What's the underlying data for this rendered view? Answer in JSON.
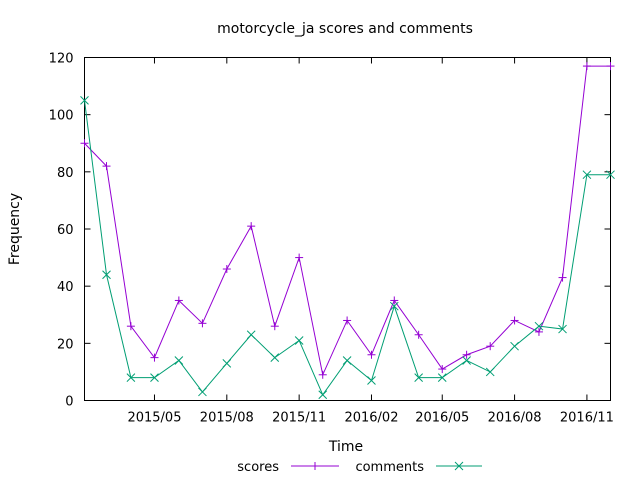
{
  "chart_data": {
    "type": "line",
    "title": "motorcycle_ja scores and comments",
    "xlabel": "Time",
    "ylabel": "Frequency",
    "ylim": [
      0,
      120
    ],
    "yticks": [
      "0",
      "20",
      "40",
      "60",
      "80",
      "100",
      "120"
    ],
    "xlim": [
      "2015-02-01",
      "2016-12-01"
    ],
    "xticks": [
      {
        "label": "2015/05",
        "date": "2015-05-01"
      },
      {
        "label": "2015/08",
        "date": "2015-08-01"
      },
      {
        "label": "2015/11",
        "date": "2015-11-01"
      },
      {
        "label": "2016/02",
        "date": "2016-02-01"
      },
      {
        "label": "2016/05",
        "date": "2016-05-01"
      },
      {
        "label": "2016/08",
        "date": "2016-08-01"
      },
      {
        "label": "2016/11",
        "date": "2016-11-01"
      }
    ],
    "x": [
      "2015-02-01",
      "2015-03-01",
      "2015-04-01",
      "2015-05-01",
      "2015-06-01",
      "2015-07-01",
      "2015-08-01",
      "2015-09-01",
      "2015-10-01",
      "2015-11-01",
      "2015-12-01",
      "2016-01-01",
      "2016-02-01",
      "2016-03-01",
      "2016-04-01",
      "2016-05-01",
      "2016-06-01",
      "2016-07-01",
      "2016-08-01",
      "2016-09-01",
      "2016-10-01",
      "2016-11-01",
      "2016-12-01"
    ],
    "grid": false,
    "legend_position": "bottom-center",
    "series": [
      {
        "name": "scores",
        "color": "#9400d3",
        "marker": "plus",
        "values": [
          90,
          82,
          26,
          15,
          35,
          27,
          46,
          61,
          26,
          50,
          9,
          28,
          16,
          35,
          23,
          11,
          16,
          19,
          28,
          24,
          43,
          117,
          117
        ]
      },
      {
        "name": "comments",
        "color": "#009e73",
        "marker": "cross",
        "values": [
          105,
          44,
          8,
          8,
          14,
          3,
          13,
          23,
          15,
          21,
          2,
          14,
          7,
          33,
          8,
          8,
          14,
          10,
          19,
          26,
          25,
          79,
          79
        ]
      }
    ]
  }
}
